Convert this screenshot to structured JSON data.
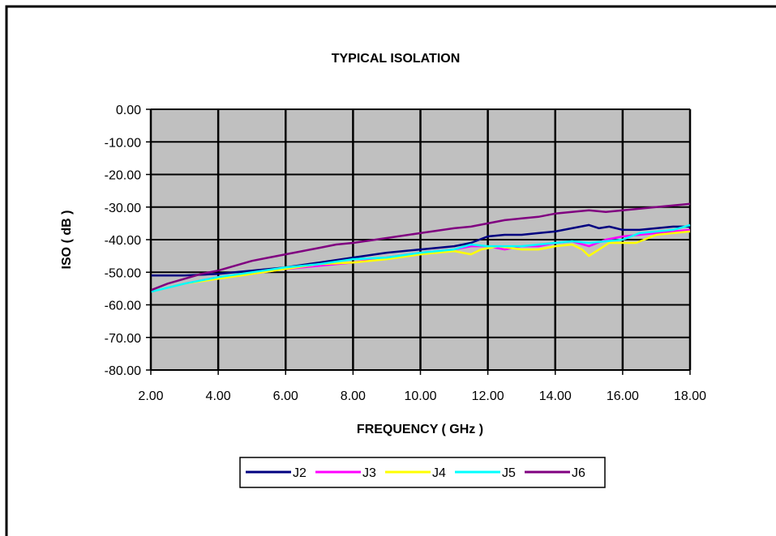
{
  "chart_data": {
    "type": "line",
    "title": "TYPICAL ISOLATION",
    "xlabel": "FREQUENCY ( GHz )",
    "ylabel": "ISO ( dB )",
    "xlim": [
      2,
      18
    ],
    "ylim": [
      -80,
      0
    ],
    "x_ticks": [
      2,
      4,
      6,
      8,
      10,
      12,
      14,
      16,
      18
    ],
    "x_tick_labels": [
      "2.00",
      "4.00",
      "6.00",
      "8.00",
      "10.00",
      "12.00",
      "14.00",
      "16.00",
      "18.00"
    ],
    "y_ticks": [
      0,
      -10,
      -20,
      -30,
      -40,
      -50,
      -60,
      -70,
      -80
    ],
    "y_tick_labels": [
      "0.00",
      "-10.00",
      "-20.00",
      "-30.00",
      "-40.00",
      "-50.00",
      "-60.00",
      "-70.00",
      "-80.00"
    ],
    "grid": true,
    "plot_background": "#C0C0C0",
    "legend_position": "bottom",
    "series": [
      {
        "name": "J2",
        "color": "#000080",
        "x": [
          2,
          3,
          4,
          5,
          6,
          7,
          8,
          9,
          10,
          11,
          11.5,
          12,
          12.5,
          13,
          13.5,
          14,
          14.5,
          15,
          15.3,
          15.6,
          16,
          16.5,
          17,
          17.5,
          18
        ],
        "y": [
          -51,
          -51,
          -50.5,
          -49.5,
          -48.5,
          -47,
          -45.5,
          -44,
          -43,
          -42,
          -41,
          -39,
          -38.5,
          -38.5,
          -38,
          -37.5,
          -36.5,
          -35.5,
          -36.5,
          -36,
          -37,
          -37,
          -36.5,
          -36,
          -36
        ]
      },
      {
        "name": "J3",
        "color": "#FF00FF",
        "x": [
          2,
          3,
          4,
          5,
          6,
          7,
          8,
          9,
          10,
          11,
          11.5,
          12,
          12.5,
          13,
          13.5,
          14,
          14.5,
          15,
          15.5,
          16,
          16.5,
          17,
          17.5,
          18
        ],
        "y": [
          -56,
          -53.5,
          -51.5,
          -50.5,
          -49,
          -48,
          -47,
          -45.5,
          -44,
          -43,
          -42,
          -42,
          -43,
          -42,
          -42,
          -41,
          -40.5,
          -42,
          -40,
          -39,
          -38.5,
          -38,
          -37.5,
          -37
        ]
      },
      {
        "name": "J4",
        "color": "#FFFF00",
        "x": [
          2,
          3,
          4,
          5,
          6,
          7,
          8,
          9,
          10,
          11,
          11.5,
          11.8,
          12.3,
          13,
          13.5,
          14,
          14.5,
          14.8,
          15,
          15.3,
          15.6,
          16,
          16.4,
          17,
          17.5,
          18
        ],
        "y": [
          -56,
          -53.5,
          -52,
          -50.5,
          -49,
          -47.5,
          -47,
          -46,
          -44.5,
          -43.5,
          -44.5,
          -43,
          -42,
          -43,
          -43,
          -42,
          -41.5,
          -43,
          -45,
          -43,
          -41,
          -41,
          -41,
          -38.5,
          -38,
          -37.5
        ]
      },
      {
        "name": "J5",
        "color": "#00FFFF",
        "x": [
          2,
          3,
          4,
          5,
          6,
          7,
          8,
          9,
          10,
          11,
          11.5,
          12,
          12.5,
          13,
          13.5,
          14,
          14.5,
          15,
          15.5,
          16,
          16.5,
          17,
          17.5,
          18
        ],
        "y": [
          -56,
          -53.5,
          -51.5,
          -50,
          -48.5,
          -47.5,
          -46,
          -45.5,
          -44,
          -43,
          -41.5,
          -42,
          -42,
          -42,
          -41.5,
          -41,
          -40.5,
          -41,
          -40.5,
          -40,
          -38,
          -37.5,
          -37,
          -35.5
        ]
      },
      {
        "name": "J6",
        "color": "#800080",
        "x": [
          2,
          2.5,
          3,
          3.5,
          4,
          4.5,
          5,
          5.5,
          6,
          6.5,
          7,
          7.5,
          8,
          9,
          10,
          11,
          11.5,
          12,
          12.5,
          13,
          13.5,
          14,
          14.5,
          15,
          15.5,
          16,
          16.5,
          17,
          17.5,
          18
        ],
        "y": [
          -55.5,
          -53.5,
          -52,
          -50.5,
          -49.5,
          -48,
          -46.5,
          -45.5,
          -44.5,
          -43.5,
          -42.5,
          -41.5,
          -41,
          -39.5,
          -38,
          -36.5,
          -36,
          -35,
          -34,
          -33.5,
          -33,
          -32,
          -31.5,
          -31,
          -31.5,
          -31,
          -30.5,
          -30,
          -29.5,
          -29
        ]
      }
    ]
  }
}
